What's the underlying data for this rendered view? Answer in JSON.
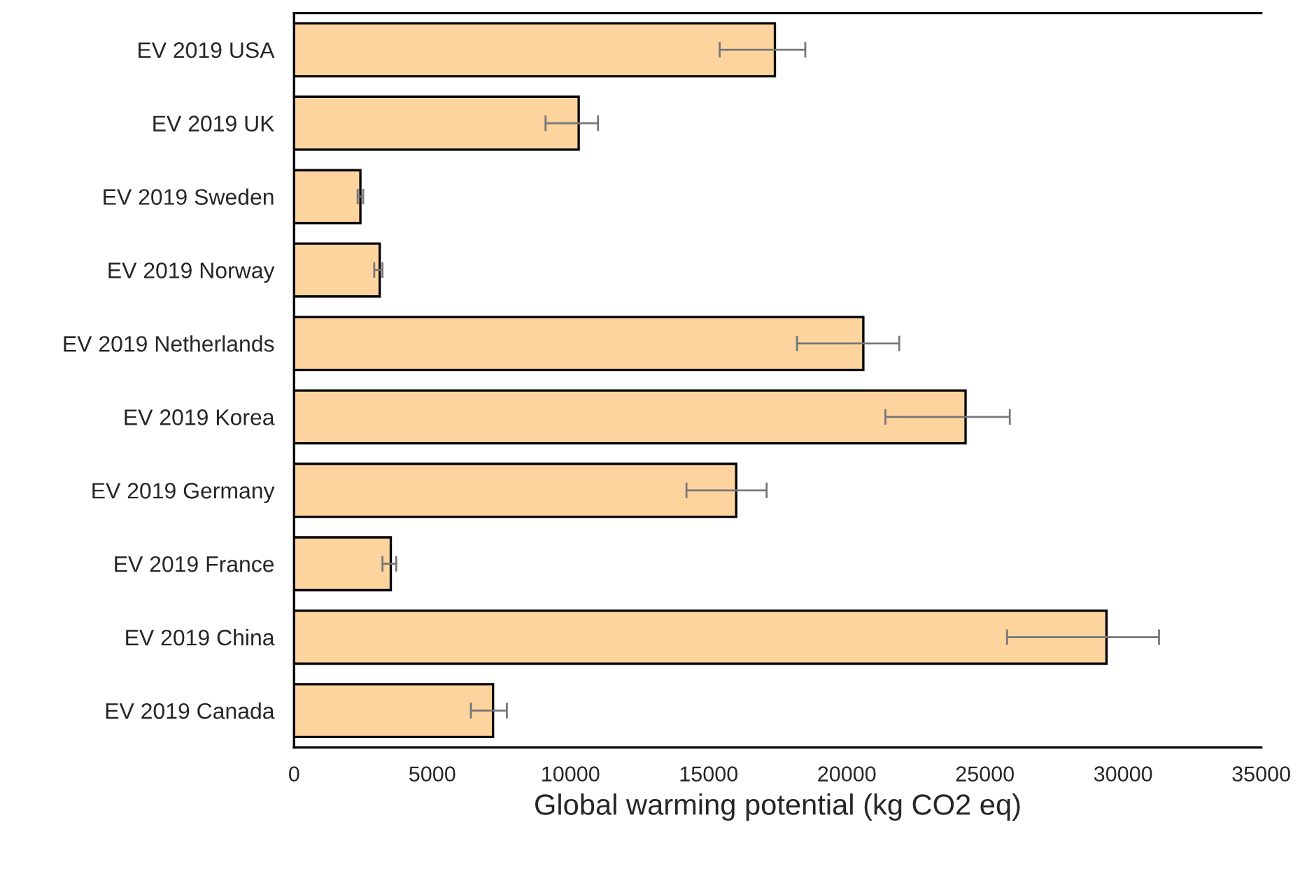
{
  "chart_data": {
    "type": "bar",
    "orientation": "horizontal",
    "xlabel": "Global warming potential (kg CO2 eq)",
    "categories": [
      "EV 2019 USA",
      "EV 2019 UK",
      "EV 2019 Sweden",
      "EV 2019 Norway",
      "EV 2019 Netherlands",
      "EV 2019 Korea",
      "EV 2019 Germany",
      "EV 2019 France",
      "EV 2019 China",
      "EV 2019 Canada"
    ],
    "values": [
      17400,
      10300,
      2400,
      3100,
      20600,
      24300,
      16000,
      3500,
      29400,
      7200
    ],
    "errors": [
      [
        15400,
        18500
      ],
      [
        9100,
        11000
      ],
      [
        2300,
        2500
      ],
      [
        2900,
        3200
      ],
      [
        18200,
        21900
      ],
      [
        21400,
        25900
      ],
      [
        14200,
        17100
      ],
      [
        3200,
        3700
      ],
      [
        25800,
        31300
      ],
      [
        6400,
        7700
      ]
    ],
    "color": "#fdd49e",
    "xlim": [
      0,
      35000
    ],
    "xticks": [
      0,
      5000,
      10000,
      15000,
      20000,
      25000,
      30000,
      35000
    ],
    "grid": false,
    "legend": false
  }
}
